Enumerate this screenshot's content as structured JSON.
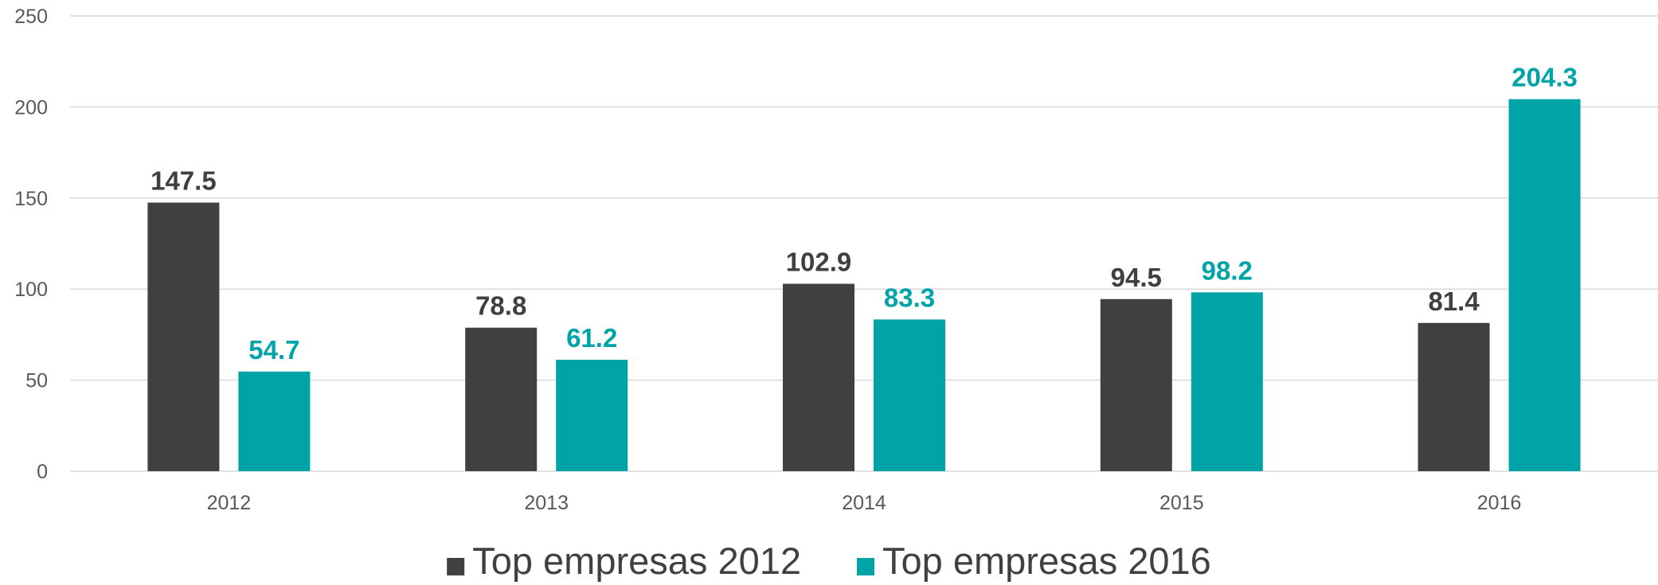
{
  "chart_data": {
    "type": "bar",
    "categories": [
      "2012",
      "2013",
      "2014",
      "2015",
      "2016"
    ],
    "series": [
      {
        "name": "Top empresas 2012",
        "color": "#404040",
        "values": [
          147.5,
          78.8,
          102.9,
          94.5,
          81.4
        ]
      },
      {
        "name": "Top empresas 2016",
        "color": "#00A3A6",
        "values": [
          54.7,
          61.2,
          83.3,
          98.2,
          204.3
        ]
      }
    ],
    "ylim": [
      0,
      250
    ],
    "yticks": [
      0,
      50,
      100,
      150,
      200,
      250
    ],
    "grid": true,
    "legend_position": "bottom",
    "data_labels": true
  }
}
